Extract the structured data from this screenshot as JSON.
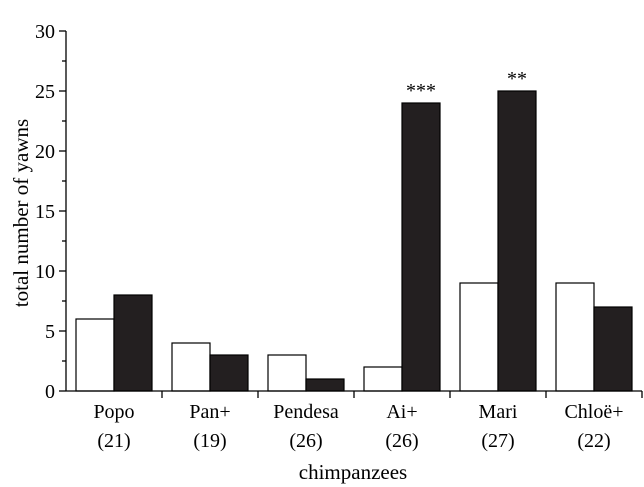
{
  "chart_data": {
    "type": "bar",
    "ylabel": "total number of yawns",
    "xlabel": "chimpanzees",
    "ylim": [
      0,
      30
    ],
    "yticks": [
      0,
      5,
      10,
      15,
      20,
      25,
      30
    ],
    "categories": [
      {
        "name": "Popo",
        "n": "(21)"
      },
      {
        "name": "Pan+",
        "n": "(19)"
      },
      {
        "name": "Pendesa",
        "n": "(26)"
      },
      {
        "name": "Ai+",
        "n": "(26)"
      },
      {
        "name": "Mari",
        "n": "(27)"
      },
      {
        "name": "Chloë+",
        "n": "(22)"
      }
    ],
    "series": [
      {
        "style": "open",
        "color": "#ffffff",
        "values": [
          6,
          4,
          3,
          2,
          9,
          9
        ]
      },
      {
        "style": "filled",
        "color": "#231f20",
        "values": [
          8,
          3,
          1,
          24,
          25,
          7
        ]
      }
    ],
    "annotations": [
      {
        "category_index": 3,
        "text": "***"
      },
      {
        "category_index": 4,
        "text": "**"
      }
    ],
    "grid": false,
    "legend": "none"
  }
}
